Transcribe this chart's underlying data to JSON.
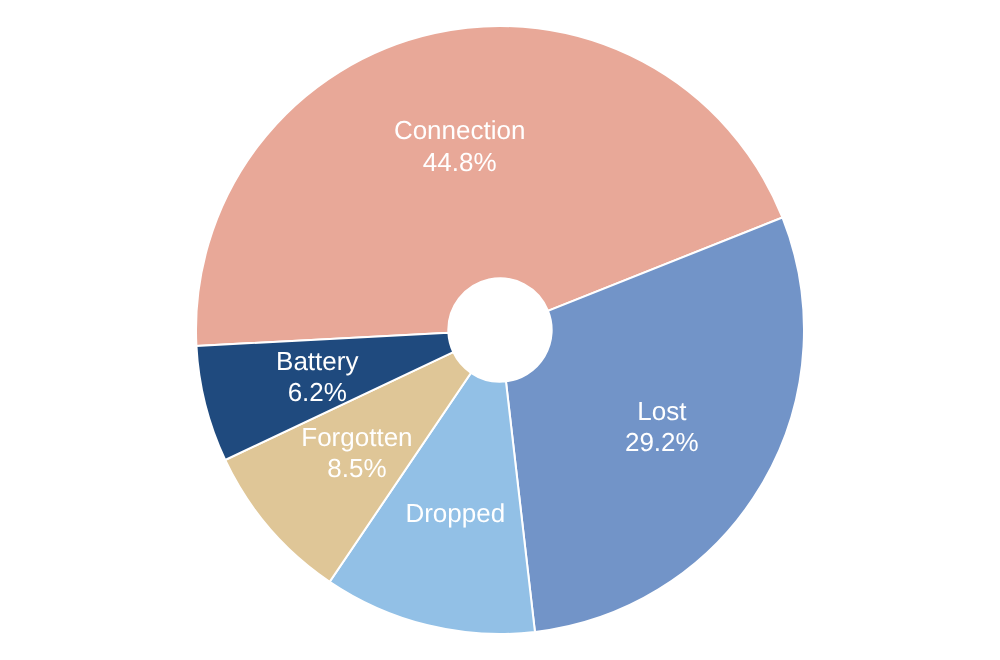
{
  "chart_data": {
    "type": "donut",
    "categories": [
      "Connection",
      "Lost",
      "Dropped",
      "Forgotten",
      "Battery"
    ],
    "values": [
      44.8,
      29.2,
      11.3,
      8.5,
      6.2
    ],
    "colors": [
      "#e8a898",
      "#7294c8",
      "#92c0e6",
      "#dfc697",
      "#1f4a7e"
    ],
    "value_labels": [
      "44.8%",
      "29.2%",
      null,
      "8.5%",
      "6.2%"
    ]
  }
}
